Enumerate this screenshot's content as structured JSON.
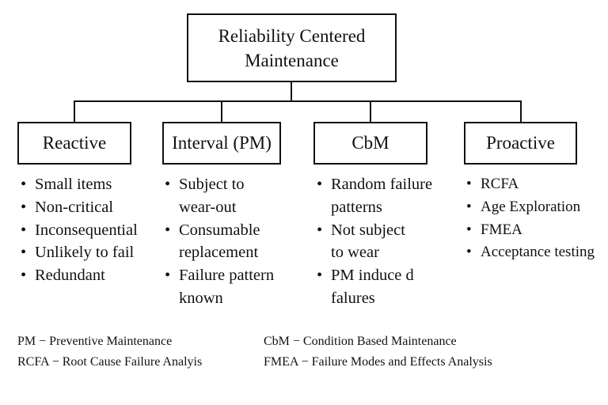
{
  "root": {
    "title": "Reliability Centered\nMaintenance"
  },
  "categories": [
    {
      "label": "Reactive",
      "items": [
        "Small items",
        "Non-critical",
        "Inconsequential",
        "Unlikely to fail",
        "Redundant"
      ]
    },
    {
      "label": "Interval (PM)",
      "items": [
        "Subject to\nwear-out",
        "Consumable\nreplacement",
        "Failure pattern\nknown"
      ]
    },
    {
      "label": "CbM",
      "items": [
        "Random failure\npatterns",
        "Not subject\nto wear",
        "PM induce d\nfalures"
      ]
    },
    {
      "label": "Proactive",
      "items": [
        "RCFA",
        "Age Exploration",
        "FMEA",
        "Acceptance testing"
      ]
    }
  ],
  "legend": [
    "PM − Preventive Maintenance",
    "CbM − Condition Based Maintenance",
    "RCFA − Root Cause Failure Analyis",
    "FMEA − Failure Modes and Effects Analysis"
  ]
}
